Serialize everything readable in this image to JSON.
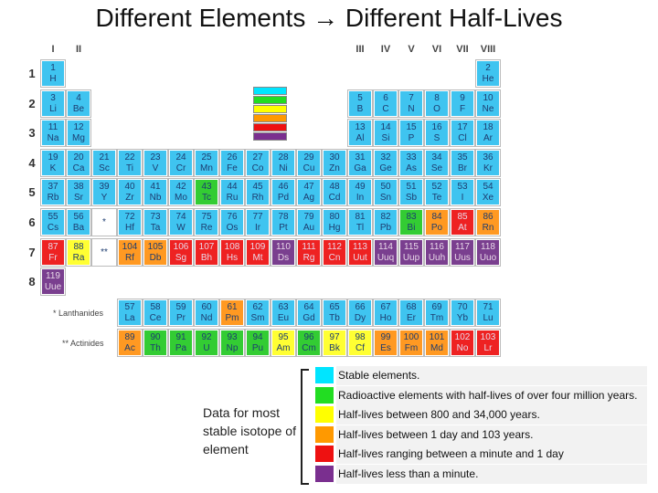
{
  "header": {
    "title": "Different Elements → Different Half-Lives"
  },
  "table": {
    "groups": [
      "I",
      "II",
      "III",
      "IV",
      "V",
      "VI",
      "VII",
      "VIII"
    ],
    "periods": [
      {
        "label": "1",
        "cells": [
          {
            "number": 1,
            "symbol": "H",
            "color": "#3fc4f0"
          },
          null,
          null,
          null,
          null,
          null,
          null,
          null,
          null,
          null,
          null,
          null,
          null,
          null,
          null,
          null,
          null,
          {
            "number": 2,
            "symbol": "He",
            "color": "#3fc4f0"
          }
        ]
      },
      {
        "label": "2",
        "cells": [
          {
            "number": 3,
            "symbol": "Li",
            "color": "#3fc4f0"
          },
          {
            "number": 4,
            "symbol": "Be",
            "color": "#3fc4f0"
          },
          null,
          null,
          null,
          null,
          null,
          null,
          null,
          null,
          null,
          null,
          {
            "number": 5,
            "symbol": "B",
            "color": "#3fc4f0"
          },
          {
            "number": 6,
            "symbol": "C",
            "color": "#3fc4f0"
          },
          {
            "number": 7,
            "symbol": "N",
            "color": "#3fc4f0"
          },
          {
            "number": 8,
            "symbol": "O",
            "color": "#3fc4f0"
          },
          {
            "number": 9,
            "symbol": "F",
            "color": "#3fc4f0"
          },
          {
            "number": 10,
            "symbol": "Ne",
            "color": "#3fc4f0"
          }
        ]
      },
      {
        "label": "3",
        "cells": [
          {
            "number": 11,
            "symbol": "Na",
            "color": "#3fc4f0"
          },
          {
            "number": 12,
            "symbol": "Mg",
            "color": "#3fc4f0"
          },
          null,
          null,
          null,
          null,
          null,
          null,
          null,
          null,
          null,
          null,
          {
            "number": 13,
            "symbol": "Al",
            "color": "#3fc4f0"
          },
          {
            "number": 14,
            "symbol": "Si",
            "color": "#3fc4f0"
          },
          {
            "number": 15,
            "symbol": "P",
            "color": "#3fc4f0"
          },
          {
            "number": 16,
            "symbol": "S",
            "color": "#3fc4f0"
          },
          {
            "number": 17,
            "symbol": "Cl",
            "color": "#3fc4f0"
          },
          {
            "number": 18,
            "symbol": "Ar",
            "color": "#3fc4f0"
          }
        ]
      },
      {
        "label": "4",
        "cells": [
          {
            "number": 19,
            "symbol": "K",
            "color": "#3fc4f0"
          },
          {
            "number": 20,
            "symbol": "Ca",
            "color": "#3fc4f0"
          },
          {
            "number": 21,
            "symbol": "Sc",
            "color": "#3fc4f0"
          },
          {
            "number": 22,
            "symbol": "Ti",
            "color": "#3fc4f0"
          },
          {
            "number": 23,
            "symbol": "V",
            "color": "#3fc4f0"
          },
          {
            "number": 24,
            "symbol": "Cr",
            "color": "#3fc4f0"
          },
          {
            "number": 25,
            "symbol": "Mn",
            "color": "#3fc4f0"
          },
          {
            "number": 26,
            "symbol": "Fe",
            "color": "#3fc4f0"
          },
          {
            "number": 27,
            "symbol": "Co",
            "color": "#3fc4f0"
          },
          {
            "number": 28,
            "symbol": "Ni",
            "color": "#3fc4f0"
          },
          {
            "number": 29,
            "symbol": "Cu",
            "color": "#3fc4f0"
          },
          {
            "number": 30,
            "symbol": "Zn",
            "color": "#3fc4f0"
          },
          {
            "number": 31,
            "symbol": "Ga",
            "color": "#3fc4f0"
          },
          {
            "number": 32,
            "symbol": "Ge",
            "color": "#3fc4f0"
          },
          {
            "number": 33,
            "symbol": "As",
            "color": "#3fc4f0"
          },
          {
            "number": 34,
            "symbol": "Se",
            "color": "#3fc4f0"
          },
          {
            "number": 35,
            "symbol": "Br",
            "color": "#3fc4f0"
          },
          {
            "number": 36,
            "symbol": "Kr",
            "color": "#3fc4f0"
          }
        ]
      },
      {
        "label": "5",
        "cells": [
          {
            "number": 37,
            "symbol": "Rb",
            "color": "#3fc4f0"
          },
          {
            "number": 38,
            "symbol": "Sr",
            "color": "#3fc4f0"
          },
          {
            "number": 39,
            "symbol": "Y",
            "color": "#3fc4f0"
          },
          {
            "number": 40,
            "symbol": "Zr",
            "color": "#3fc4f0"
          },
          {
            "number": 41,
            "symbol": "Nb",
            "color": "#3fc4f0"
          },
          {
            "number": 42,
            "symbol": "Mo",
            "color": "#3fc4f0"
          },
          {
            "number": 43,
            "symbol": "Tc",
            "color": "#33cc33"
          },
          {
            "number": 44,
            "symbol": "Ru",
            "color": "#3fc4f0"
          },
          {
            "number": 45,
            "symbol": "Rh",
            "color": "#3fc4f0"
          },
          {
            "number": 46,
            "symbol": "Pd",
            "color": "#3fc4f0"
          },
          {
            "number": 47,
            "symbol": "Ag",
            "color": "#3fc4f0"
          },
          {
            "number": 48,
            "symbol": "Cd",
            "color": "#3fc4f0"
          },
          {
            "number": 49,
            "symbol": "In",
            "color": "#3fc4f0"
          },
          {
            "number": 50,
            "symbol": "Sn",
            "color": "#3fc4f0"
          },
          {
            "number": 51,
            "symbol": "Sb",
            "color": "#3fc4f0"
          },
          {
            "number": 52,
            "symbol": "Te",
            "color": "#3fc4f0"
          },
          {
            "number": 53,
            "symbol": "I",
            "color": "#3fc4f0"
          },
          {
            "number": 54,
            "symbol": "Xe",
            "color": "#3fc4f0"
          }
        ]
      },
      {
        "label": "6",
        "cells": [
          {
            "number": 55,
            "symbol": "Cs",
            "color": "#3fc4f0"
          },
          {
            "number": 56,
            "symbol": "Ba",
            "color": "#3fc4f0"
          },
          {
            "symbol": "*",
            "color": "#ffffff"
          },
          {
            "number": 72,
            "symbol": "Hf",
            "color": "#3fc4f0"
          },
          {
            "number": 73,
            "symbol": "Ta",
            "color": "#3fc4f0"
          },
          {
            "number": 74,
            "symbol": "W",
            "color": "#3fc4f0"
          },
          {
            "number": 75,
            "symbol": "Re",
            "color": "#3fc4f0"
          },
          {
            "number": 76,
            "symbol": "Os",
            "color": "#3fc4f0"
          },
          {
            "number": 77,
            "symbol": "Ir",
            "color": "#3fc4f0"
          },
          {
            "number": 78,
            "symbol": "Pt",
            "color": "#3fc4f0"
          },
          {
            "number": 79,
            "symbol": "Au",
            "color": "#3fc4f0"
          },
          {
            "number": 80,
            "symbol": "Hg",
            "color": "#3fc4f0"
          },
          {
            "number": 81,
            "symbol": "Tl",
            "color": "#3fc4f0"
          },
          {
            "number": 82,
            "symbol": "Pb",
            "color": "#3fc4f0"
          },
          {
            "number": 83,
            "symbol": "Bi",
            "color": "#33cc33"
          },
          {
            "number": 84,
            "symbol": "Po",
            "color": "#ff9922"
          },
          {
            "number": 85,
            "symbol": "At",
            "color": "#ee2222"
          },
          {
            "number": 86,
            "symbol": "Rn",
            "color": "#ff9922"
          }
        ]
      },
      {
        "label": "7",
        "cells": [
          {
            "number": 87,
            "symbol": "Fr",
            "color": "#ee2222"
          },
          {
            "number": 88,
            "symbol": "Ra",
            "color": "#ffff33"
          },
          {
            "symbol": "**",
            "color": "#ffffff"
          },
          {
            "number": 104,
            "symbol": "Rf",
            "color": "#ff9922"
          },
          {
            "number": 105,
            "symbol": "Db",
            "color": "#ff9922"
          },
          {
            "number": 106,
            "symbol": "Sg",
            "color": "#ee2222"
          },
          {
            "number": 107,
            "symbol": "Bh",
            "color": "#ee2222"
          },
          {
            "number": 108,
            "symbol": "Hs",
            "color": "#ee2222"
          },
          {
            "number": 109,
            "symbol": "Mt",
            "color": "#ee2222"
          },
          {
            "number": 110,
            "symbol": "Ds",
            "color": "#7a3f8f"
          },
          {
            "number": 111,
            "symbol": "Rg",
            "color": "#ee2222"
          },
          {
            "number": 112,
            "symbol": "Cn",
            "color": "#ee2222"
          },
          {
            "number": 113,
            "symbol": "Uut",
            "color": "#ee2222"
          },
          {
            "number": 114,
            "symbol": "Uuq",
            "color": "#7a3f8f"
          },
          {
            "number": 115,
            "symbol": "Uup",
            "color": "#7a3f8f"
          },
          {
            "number": 116,
            "symbol": "Uuh",
            "color": "#7a3f8f"
          },
          {
            "number": 117,
            "symbol": "Uus",
            "color": "#7a3f8f"
          },
          {
            "number": 118,
            "symbol": "Uuo",
            "color": "#7a3f8f"
          }
        ]
      },
      {
        "label": "8",
        "cells": [
          {
            "number": 119,
            "symbol": "Uue",
            "color": "#7a3f8f"
          }
        ]
      }
    ],
    "series_rows": [
      {
        "label": "* Lanthanides",
        "cells": [
          {
            "number": 57,
            "symbol": "La",
            "color": "#3fc4f0"
          },
          {
            "number": 58,
            "symbol": "Ce",
            "color": "#3fc4f0"
          },
          {
            "number": 59,
            "symbol": "Pr",
            "color": "#3fc4f0"
          },
          {
            "number": 60,
            "symbol": "Nd",
            "color": "#3fc4f0"
          },
          {
            "number": 61,
            "symbol": "Pm",
            "color": "#ff9922"
          },
          {
            "number": 62,
            "symbol": "Sm",
            "color": "#3fc4f0"
          },
          {
            "number": 63,
            "symbol": "Eu",
            "color": "#3fc4f0"
          },
          {
            "number": 64,
            "symbol": "Gd",
            "color": "#3fc4f0"
          },
          {
            "number": 65,
            "symbol": "Tb",
            "color": "#3fc4f0"
          },
          {
            "number": 66,
            "symbol": "Dy",
            "color": "#3fc4f0"
          },
          {
            "number": 67,
            "symbol": "Ho",
            "color": "#3fc4f0"
          },
          {
            "number": 68,
            "symbol": "Er",
            "color": "#3fc4f0"
          },
          {
            "number": 69,
            "symbol": "Tm",
            "color": "#3fc4f0"
          },
          {
            "number": 70,
            "symbol": "Yb",
            "color": "#3fc4f0"
          },
          {
            "number": 71,
            "symbol": "Lu",
            "color": "#3fc4f0"
          }
        ]
      },
      {
        "label": "** Actinides",
        "cells": [
          {
            "number": 89,
            "symbol": "Ac",
            "color": "#ff9922"
          },
          {
            "number": 90,
            "symbol": "Th",
            "color": "#33cc33"
          },
          {
            "number": 91,
            "symbol": "Pa",
            "color": "#33cc33"
          },
          {
            "number": 92,
            "symbol": "U",
            "color": "#33cc33"
          },
          {
            "number": 93,
            "symbol": "Np",
            "color": "#33cc33"
          },
          {
            "number": 94,
            "symbol": "Pu",
            "color": "#33cc33"
          },
          {
            "number": 95,
            "symbol": "Am",
            "color": "#ffff33"
          },
          {
            "number": 96,
            "symbol": "Cm",
            "color": "#33cc33"
          },
          {
            "number": 97,
            "symbol": "Bk",
            "color": "#ffff33"
          },
          {
            "number": 98,
            "symbol": "Cf",
            "color": "#ffff33"
          },
          {
            "number": 99,
            "symbol": "Es",
            "color": "#ff9922"
          },
          {
            "number": 100,
            "symbol": "Fm",
            "color": "#ff9922"
          },
          {
            "number": 101,
            "symbol": "Md",
            "color": "#ff9922"
          },
          {
            "number": 102,
            "symbol": "No",
            "color": "#ee2222"
          },
          {
            "number": 103,
            "symbol": "Lr",
            "color": "#ee2222"
          }
        ]
      }
    ]
  },
  "note": "Data for most stable isotope of element",
  "legend": [
    {
      "color": "#00e5ff",
      "text": "Stable elements."
    },
    {
      "color": "#22dd22",
      "text": "Radioactive elements with half-lives of over four million years."
    },
    {
      "color": "#ffff00",
      "text": "Half-lives between 800 and 34,000 years."
    },
    {
      "color": "#ff9900",
      "text": "Half-lives between 1 day and 103 years."
    },
    {
      "color": "#ee1111",
      "text": "Half-lives ranging between a minute and 1 day"
    },
    {
      "color": "#7a2f8f",
      "text": "Half-lives less than a minute."
    }
  ]
}
